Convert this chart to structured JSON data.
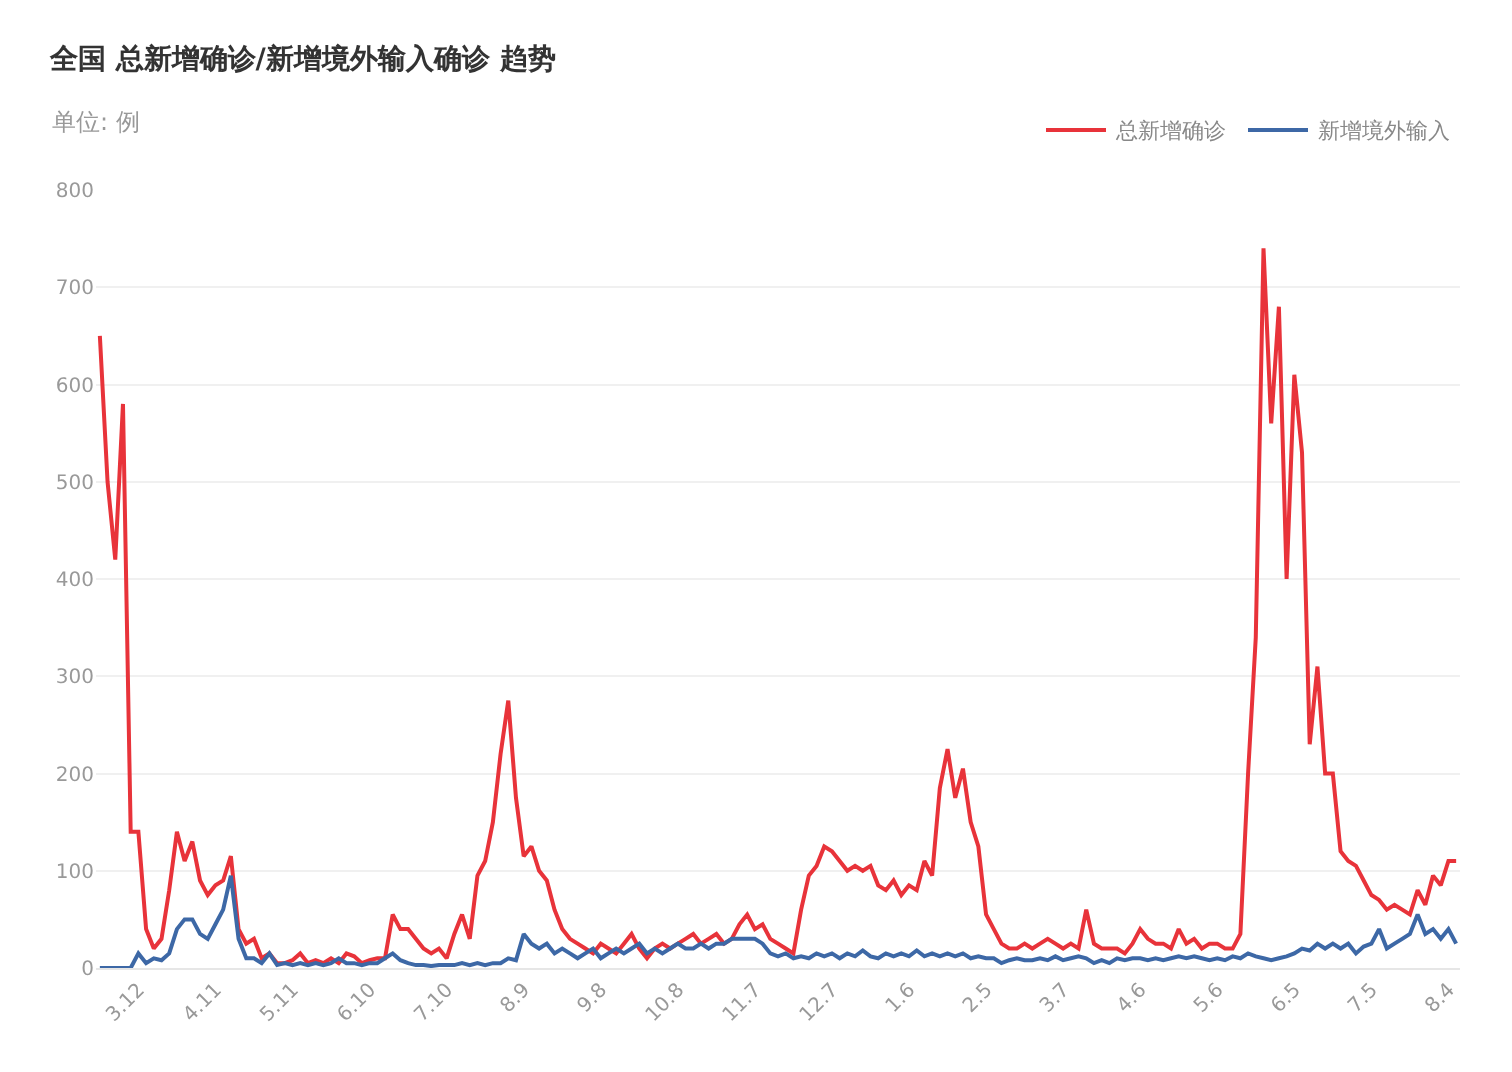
{
  "chart_data": {
    "type": "line",
    "title": "全国 总新增确诊/新增境外输入确诊 趋势",
    "subtitle": "单位: 例",
    "categories": [
      null,
      null,
      null,
      null,
      null,
      "3.12",
      null,
      null,
      null,
      null,
      null,
      null,
      null,
      null,
      null,
      "4.11",
      null,
      null,
      null,
      null,
      null,
      null,
      null,
      null,
      null,
      "5.11",
      null,
      null,
      null,
      null,
      null,
      null,
      null,
      null,
      null,
      "6.10",
      null,
      null,
      null,
      null,
      null,
      null,
      null,
      null,
      null,
      "7.10",
      null,
      null,
      null,
      null,
      null,
      null,
      null,
      null,
      null,
      "8.9",
      null,
      null,
      null,
      null,
      null,
      null,
      null,
      null,
      null,
      "9.8",
      null,
      null,
      null,
      null,
      null,
      null,
      null,
      null,
      null,
      "10.8",
      null,
      null,
      null,
      null,
      null,
      null,
      null,
      null,
      null,
      "11.7",
      null,
      null,
      null,
      null,
      null,
      null,
      null,
      null,
      null,
      "12.7",
      null,
      null,
      null,
      null,
      null,
      null,
      null,
      null,
      null,
      "1.6",
      null,
      null,
      null,
      null,
      null,
      null,
      null,
      null,
      null,
      "2.5",
      null,
      null,
      null,
      null,
      null,
      null,
      null,
      null,
      null,
      "3.7",
      null,
      null,
      null,
      null,
      null,
      null,
      null,
      null,
      null,
      "4.6",
      null,
      null,
      null,
      null,
      null,
      null,
      null,
      null,
      null,
      "5.6",
      null,
      null,
      null,
      null,
      null,
      null,
      null,
      null,
      null,
      "6.5",
      null,
      null,
      null,
      null,
      null,
      null,
      null,
      null,
      null,
      "7.5",
      null,
      null,
      null,
      null,
      null,
      null,
      null,
      null,
      null,
      "8.4",
      null
    ],
    "series": [
      {
        "name": "总新增确诊",
        "color": "#e8333a",
        "values": [
          650,
          500,
          420,
          580,
          140,
          140,
          40,
          20,
          30,
          80,
          140,
          110,
          130,
          90,
          75,
          85,
          90,
          115,
          40,
          25,
          30,
          10,
          15,
          5,
          5,
          8,
          15,
          5,
          8,
          5,
          10,
          5,
          15,
          12,
          5,
          8,
          10,
          10,
          55,
          40,
          40,
          30,
          20,
          15,
          20,
          10,
          35,
          55,
          30,
          95,
          110,
          150,
          220,
          275,
          175,
          115,
          125,
          100,
          90,
          60,
          40,
          30,
          25,
          20,
          15,
          25,
          20,
          15,
          25,
          35,
          20,
          10,
          20,
          25,
          20,
          25,
          30,
          35,
          25,
          30,
          35,
          25,
          30,
          45,
          55,
          40,
          45,
          30,
          25,
          20,
          15,
          60,
          95,
          105,
          125,
          120,
          110,
          100,
          105,
          100,
          105,
          85,
          80,
          90,
          75,
          85,
          80,
          110,
          95,
          185,
          225,
          175,
          205,
          150,
          125,
          55,
          40,
          25,
          20,
          20,
          25,
          20,
          25,
          30,
          25,
          20,
          25,
          20,
          60,
          25,
          20,
          20,
          20,
          15,
          25,
          40,
          30,
          25,
          25,
          20,
          40,
          25,
          30,
          20,
          25,
          25,
          20,
          20,
          35,
          200,
          340,
          740,
          560,
          680,
          400,
          610,
          530,
          230,
          310,
          200,
          200,
          120,
          110,
          105,
          90,
          75,
          70,
          60,
          65,
          60,
          55,
          80,
          65,
          95,
          85,
          110,
          110
        ]
      },
      {
        "name": "新增境外输入",
        "color": "#3d68a6",
        "values": [
          0,
          0,
          0,
          0,
          0,
          15,
          5,
          10,
          8,
          15,
          40,
          50,
          50,
          35,
          30,
          45,
          60,
          95,
          30,
          10,
          10,
          5,
          15,
          3,
          5,
          3,
          5,
          3,
          5,
          3,
          5,
          10,
          5,
          5,
          3,
          5,
          5,
          10,
          15,
          8,
          5,
          3,
          3,
          2,
          3,
          3,
          3,
          5,
          3,
          5,
          3,
          5,
          5,
          10,
          8,
          35,
          25,
          20,
          25,
          15,
          20,
          15,
          10,
          15,
          20,
          10,
          15,
          20,
          15,
          20,
          25,
          15,
          20,
          15,
          20,
          25,
          20,
          20,
          25,
          20,
          25,
          25,
          30,
          30,
          30,
          30,
          25,
          15,
          12,
          15,
          10,
          12,
          10,
          15,
          12,
          15,
          10,
          15,
          12,
          18,
          12,
          10,
          15,
          12,
          15,
          12,
          18,
          12,
          15,
          12,
          15,
          12,
          15,
          10,
          12,
          10,
          10,
          5,
          8,
          10,
          8,
          8,
          10,
          8,
          12,
          8,
          10,
          12,
          10,
          5,
          8,
          5,
          10,
          8,
          10,
          10,
          8,
          10,
          8,
          10,
          12,
          10,
          12,
          10,
          8,
          10,
          8,
          12,
          10,
          15,
          12,
          10,
          8,
          10,
          12,
          15,
          20,
          18,
          25,
          20,
          25,
          20,
          25,
          15,
          22,
          25,
          40,
          20,
          25,
          30,
          35,
          55,
          35,
          40,
          30,
          40,
          25
        ]
      }
    ],
    "ylim": [
      0,
      800
    ],
    "yticks": [
      0,
      100,
      200,
      300,
      400,
      500,
      600,
      700,
      800
    ],
    "grid": "y",
    "legend": "top right",
    "marker": "none",
    "line_style": "solid"
  }
}
